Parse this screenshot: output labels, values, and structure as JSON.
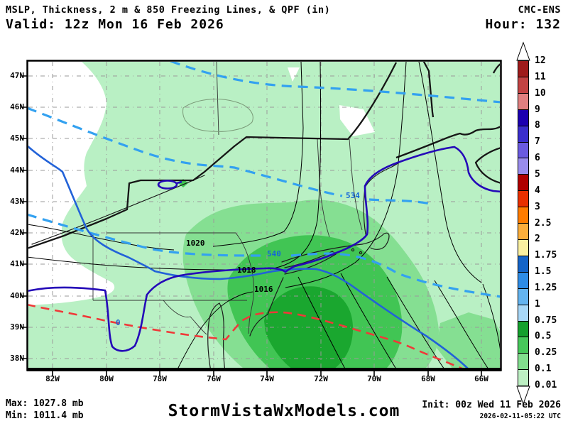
{
  "header": {
    "title": "MSLP, Thickness, 2 m & 850 Freezing Lines, & QPF (in)",
    "model": "CMC-ENS",
    "valid": "Valid: 12z Mon 16 Feb 2026",
    "hour": "Hour: 132"
  },
  "footer": {
    "max": "Max: 1027.8 mb",
    "min": "Min: 1011.4 mb",
    "site": "StormVistaWxModels.com",
    "init": "Init: 00z Wed 11 Feb 2026",
    "generated": "2026-02-11-05:22 UTC"
  },
  "colorbar": {
    "unit": "in",
    "ticks": [
      "12",
      "11",
      "10",
      "9",
      "8",
      "7",
      "6",
      "5",
      "4",
      "3",
      "2.5",
      "2",
      "1.75",
      "1.5",
      "1.25",
      "1",
      "0.75",
      "0.5",
      "0.25",
      "0.1",
      "0.01"
    ],
    "colors": [
      "#9E1B1B",
      "#C24343",
      "#E08080",
      "#1C00B0",
      "#3A2ECC",
      "#6A5AE0",
      "#998CEC",
      "#AE0000",
      "#E83000",
      "#FF7C00",
      "#FBAE3C",
      "#FAF0A0",
      "#1464C8",
      "#2E8CE6",
      "#64B4F0",
      "#A8D8F8",
      "#14A02D",
      "#46C85A",
      "#82DE8E",
      "#BDF0C3"
    ]
  },
  "map": {
    "lat_labels": [
      "47N",
      "46N",
      "45N",
      "44N",
      "43N",
      "42N",
      "41N",
      "40N",
      "39N",
      "38N"
    ],
    "lon_labels": [
      "82W",
      "80W",
      "78W",
      "76W",
      "74W",
      "72W",
      "70W",
      "68W",
      "66W"
    ],
    "pressure_labels": [
      {
        "text": "1020"
      },
      {
        "text": "1018"
      },
      {
        "text": "1016"
      }
    ],
    "thickness_labels": [
      {
        "text": "534"
      },
      {
        "text": "540"
      }
    ],
    "freezing_label": "0",
    "colors": {
      "qpf_trace": "#B9F0C4",
      "qpf_light": "#85DF92",
      "qpf_moderate": "#41C554",
      "qpf_heavy": "#1AA72F",
      "thickness_line": "#33A1F0",
      "freezing_line_dark": "#2408B8",
      "freezing_line_blue": "#2262D8",
      "freezing_line_red": "#F03838",
      "isobar": "#000000"
    }
  }
}
